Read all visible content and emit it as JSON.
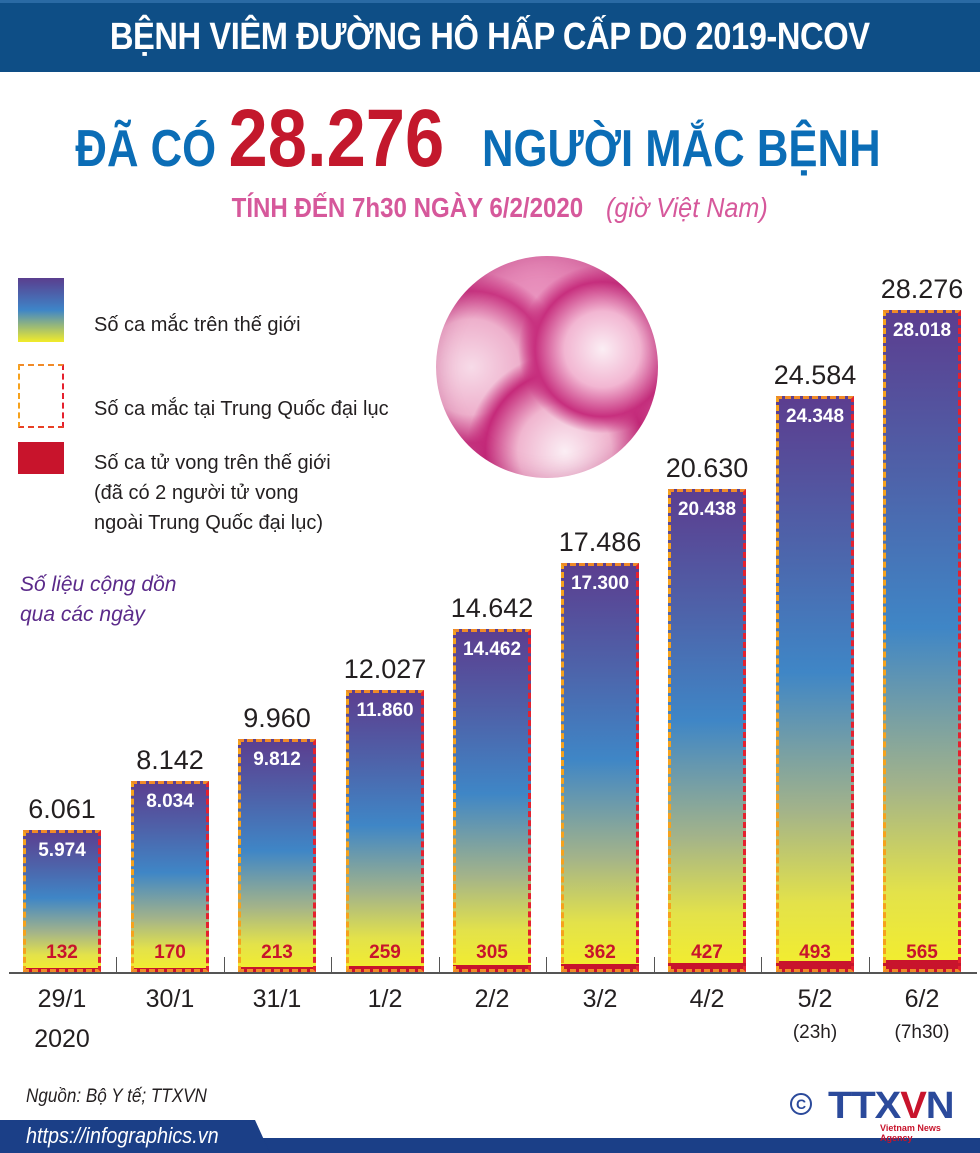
{
  "header": {
    "banner_title": "BỆNH VIÊM ĐƯỜNG HÔ HẤP CẤP DO 2019-NCOV",
    "headline_prefix": "ĐÃ CÓ",
    "headline_number": "28.276",
    "headline_suffix": "NGƯỜI MẮC BỆNH",
    "subtitle_bold": "TÍNH ĐẾN 7h30 NGÀY 6/2/2020",
    "subtitle_italic": "(giờ Việt Nam)"
  },
  "legend": {
    "world_cases": "Số ca mắc trên thế giới",
    "china_cases": "Số ca mắc tại Trung Quốc đại lục",
    "deaths_line1": "Số ca tử vong trên thế giới",
    "deaths_line2": "(đã có 2 người tử vong",
    "deaths_line3": "ngoài Trung Quốc đại lục)"
  },
  "note": {
    "line1": "Số liệu cộng dồn",
    "line2": "qua các ngày"
  },
  "colors": {
    "banner": "#0e4e86",
    "headline_blue": "#0b6db6",
    "headline_red": "#c3182c",
    "subtitle_pink": "#d6589b",
    "deaths_red": "#c8142c",
    "gradient_top": "#5c3d8f",
    "gradient_mid": "#3f86c6",
    "gradient_bottom": "#f4ee2c",
    "china_dash_orange": "#f08a28",
    "note_purple": "#5b2a8a",
    "footer_blue": "#1b3f87"
  },
  "chart_data": {
    "type": "bar",
    "title": "Đã có 28.276 người mắc bệnh",
    "subtitle": "Tính đến 7h30 ngày 6/2/2020 (giờ Việt Nam)",
    "xlabel": "",
    "ylabel": "",
    "grid": false,
    "legend_position": "top-left",
    "categories": [
      "29/1 2020",
      "30/1",
      "31/1",
      "1/2",
      "2/2",
      "3/2",
      "4/2",
      "5/2 (23h)",
      "6/2 (7h30)"
    ],
    "category_labels": [
      {
        "main": "29/1",
        "sub": "2020"
      },
      {
        "main": "30/1",
        "sub": ""
      },
      {
        "main": "31/1",
        "sub": ""
      },
      {
        "main": "1/2",
        "sub": ""
      },
      {
        "main": "2/2",
        "sub": ""
      },
      {
        "main": "3/2",
        "sub": ""
      },
      {
        "main": "4/2",
        "sub": ""
      },
      {
        "main": "5/2",
        "sub": "(23h)"
      },
      {
        "main": "6/2",
        "sub": "(7h30)"
      }
    ],
    "series": [
      {
        "name": "Số ca mắc trên thế giới",
        "values": [
          6061,
          8142,
          9960,
          12027,
          14642,
          17486,
          20630,
          24584,
          28276
        ],
        "labels": [
          "6.061",
          "8.142",
          "9.960",
          "12.027",
          "14.642",
          "17.486",
          "20.630",
          "24.584",
          "28.276"
        ]
      },
      {
        "name": "Số ca mắc tại Trung Quốc đại lục",
        "values": [
          5974,
          8034,
          9812,
          11860,
          14462,
          17300,
          20438,
          24348,
          28018
        ],
        "labels": [
          "5.974",
          "8.034",
          "9.812",
          "11.860",
          "14.462",
          "17.300",
          "20.438",
          "24.348",
          "28.018"
        ]
      },
      {
        "name": "Số ca tử vong trên thế giới",
        "values": [
          132,
          170,
          213,
          259,
          305,
          362,
          427,
          493,
          565
        ],
        "labels": [
          "132",
          "170",
          "213",
          "259",
          "305",
          "362",
          "427",
          "493",
          "565"
        ]
      }
    ],
    "ylim": [
      0,
      30000
    ]
  },
  "footer": {
    "source": "Nguồn: Bộ Y tế; TTXVN",
    "url": "https://infographics.vn",
    "copyright_symbol": "C",
    "logo_text_left": "TTX",
    "logo_text_v": "V",
    "logo_text_right": "N",
    "logo_tagline": "Vietnam News Agency"
  }
}
